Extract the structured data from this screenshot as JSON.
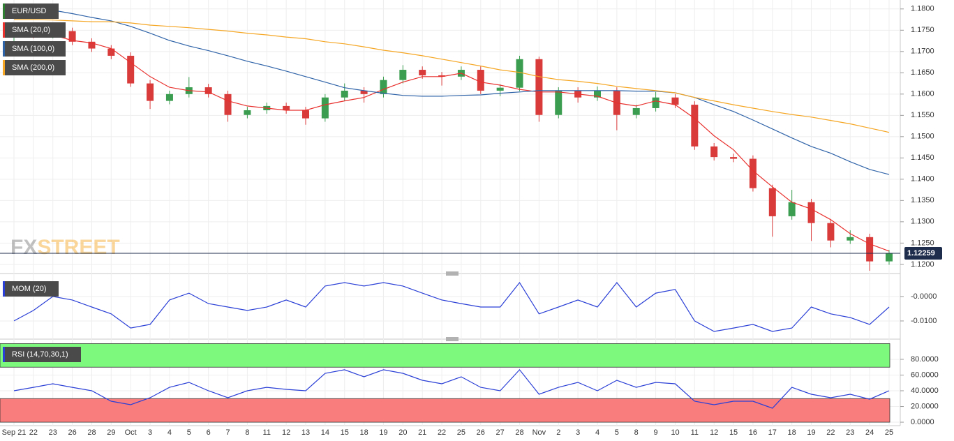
{
  "chart_data": {
    "type": "candlestick",
    "symbol": "EUR/USD",
    "categories": [
      "Sep 21",
      "22",
      "23",
      "26",
      "28",
      "29",
      "Oct",
      "3",
      "4",
      "5",
      "6",
      "7",
      "8",
      "11",
      "12",
      "13",
      "14",
      "15",
      "18",
      "19",
      "20",
      "21",
      "22",
      "25",
      "26",
      "27",
      "28",
      "Nov",
      "2",
      "3",
      "4",
      "5",
      "8",
      "9",
      "10",
      "11",
      "12",
      "15",
      "16",
      "17",
      "18",
      "19",
      "22",
      "23",
      "24",
      "25"
    ],
    "open": [
      1.174,
      1.1748,
      1.1739,
      1.1748,
      1.1723,
      1.1707,
      1.169,
      1.1625,
      1.1584,
      1.16,
      1.1616,
      1.16,
      1.1551,
      1.1562,
      1.1572,
      1.1562,
      1.1543,
      1.1592,
      1.1608,
      1.16,
      1.1633,
      1.1657,
      1.1644,
      1.1641,
      1.1657,
      1.1608,
      1.1615,
      1.1682,
      1.1551,
      1.1608,
      1.1592,
      1.1608,
      1.1551,
      1.1567,
      1.1592,
      1.1575,
      1.1477,
      1.1452,
      1.1448,
      1.1379,
      1.1313,
      1.1346,
      1.1297,
      1.1256,
      1.1264,
      1.1207
    ],
    "high": [
      1.1756,
      1.1756,
      1.1756,
      1.1756,
      1.1731,
      1.1715,
      1.1698,
      1.1633,
      1.1608,
      1.164,
      1.1624,
      1.1608,
      1.157,
      1.158,
      1.158,
      1.157,
      1.16,
      1.1625,
      1.1616,
      1.1641,
      1.1668,
      1.1665,
      1.1652,
      1.1665,
      1.1665,
      1.1623,
      1.169,
      1.1688,
      1.1616,
      1.1616,
      1.1618,
      1.1616,
      1.1575,
      1.1605,
      1.16,
      1.1583,
      1.1485,
      1.146,
      1.1456,
      1.1387,
      1.1375,
      1.1354,
      1.1305,
      1.128,
      1.1272,
      1.1234
    ],
    "low": [
      1.172,
      1.1731,
      1.1731,
      1.1715,
      1.1699,
      1.1682,
      1.1617,
      1.1565,
      1.1576,
      1.1592,
      1.1592,
      1.1535,
      1.1543,
      1.1554,
      1.1554,
      1.1528,
      1.1535,
      1.1584,
      1.158,
      1.1592,
      1.1625,
      1.1636,
      1.162,
      1.1633,
      1.16,
      1.1595,
      1.1607,
      1.1535,
      1.1543,
      1.158,
      1.1584,
      1.1515,
      1.1543,
      1.1559,
      1.1567,
      1.1469,
      1.1444,
      1.144,
      1.1371,
      1.1265,
      1.1305,
      1.1255,
      1.124,
      1.1248,
      1.1185,
      1.1199
    ],
    "close": [
      1.1748,
      1.1739,
      1.1748,
      1.1723,
      1.1707,
      1.169,
      1.1625,
      1.1584,
      1.16,
      1.1616,
      1.16,
      1.1551,
      1.1562,
      1.1572,
      1.1562,
      1.1543,
      1.1592,
      1.1608,
      1.16,
      1.1633,
      1.1657,
      1.1644,
      1.1641,
      1.1657,
      1.1608,
      1.1615,
      1.1682,
      1.1551,
      1.1608,
      1.1592,
      1.1608,
      1.1551,
      1.1567,
      1.1592,
      1.1575,
      1.1477,
      1.1452,
      1.1448,
      1.1379,
      1.1313,
      1.1346,
      1.1297,
      1.1256,
      1.1264,
      1.1207,
      1.1226
    ],
    "up_color": "#3a9d4f",
    "down_color": "#d93a3a",
    "series": [
      {
        "name": "SMA (20,0)",
        "color": "#e8302d",
        "values": [
          1.1748,
          1.1756,
          1.1739,
          1.1726,
          1.172,
          1.1707,
          1.1674,
          1.1641,
          1.1616,
          1.1608,
          1.1605,
          1.1584,
          1.1572,
          1.1567,
          1.1562,
          1.1562,
          1.1575,
          1.1584,
          1.1592,
          1.1611,
          1.1628,
          1.1641,
          1.1641,
          1.1649,
          1.1628,
          1.1621,
          1.1611,
          1.1605,
          1.1605,
          1.16,
          1.1595,
          1.1579,
          1.1572,
          1.1584,
          1.1575,
          1.1543,
          1.1502,
          1.1469,
          1.142,
          1.1382,
          1.1346,
          1.133,
          1.1305,
          1.1272,
          1.1248,
          1.1231
        ]
      },
      {
        "name": "SMA (100,0)",
        "color": "#2f63a8",
        "values": [
          1.1808,
          1.1802,
          1.1797,
          1.1789,
          1.178,
          1.1772,
          1.1759,
          1.1743,
          1.1726,
          1.1713,
          1.1702,
          1.169,
          1.1677,
          1.1666,
          1.1654,
          1.1641,
          1.1628,
          1.1615,
          1.1608,
          1.1602,
          1.1597,
          1.1595,
          1.1595,
          1.1597,
          1.1598,
          1.1602,
          1.1605,
          1.1608,
          1.1608,
          1.1608,
          1.1608,
          1.1608,
          1.1607,
          1.1607,
          1.1603,
          1.1592,
          1.1575,
          1.1559,
          1.1539,
          1.1518,
          1.1497,
          1.1477,
          1.1461,
          1.1441,
          1.1423,
          1.1411
        ]
      },
      {
        "name": "SMA (200,0)",
        "color": "#f5a623",
        "values": [
          1.1775,
          1.1775,
          1.1774,
          1.1772,
          1.177,
          1.177,
          1.1767,
          1.1762,
          1.1759,
          1.1756,
          1.1752,
          1.1748,
          1.1743,
          1.1739,
          1.1734,
          1.173,
          1.1723,
          1.1718,
          1.1711,
          1.1703,
          1.1697,
          1.169,
          1.1682,
          1.1674,
          1.1666,
          1.1657,
          1.1651,
          1.1641,
          1.1634,
          1.163,
          1.1625,
          1.1618,
          1.1613,
          1.1608,
          1.1603,
          1.1592,
          1.1584,
          1.1575,
          1.1567,
          1.1559,
          1.1552,
          1.1546,
          1.1538,
          1.153,
          1.152,
          1.151
        ]
      }
    ],
    "ylim": [
      1.1185,
      1.1821
    ],
    "yticks": [
      {
        "value": 1.18,
        "label": "1.1800"
      },
      {
        "value": 1.175,
        "label": "1.1750"
      },
      {
        "value": 1.17,
        "label": "1.1700"
      },
      {
        "value": 1.165,
        "label": "1.1650"
      },
      {
        "value": 1.16,
        "label": "1.1600"
      },
      {
        "value": 1.155,
        "label": "1.1550"
      },
      {
        "value": 1.15,
        "label": "1.1500"
      },
      {
        "value": 1.145,
        "label": "1.1450"
      },
      {
        "value": 1.14,
        "label": "1.1400"
      },
      {
        "value": 1.135,
        "label": "1.1350"
      },
      {
        "value": 1.13,
        "label": "1.1300"
      },
      {
        "value": 1.125,
        "label": "1.1250"
      },
      {
        "value": 1.12,
        "label": "1.1200"
      }
    ],
    "last_price": 1.12259,
    "watermark": [
      "FX",
      "STREET"
    ],
    "panels": [
      {
        "type": "line",
        "name": "MOM (20)",
        "color": "#2a3fd6",
        "values": [
          -0.01,
          -0.0057,
          0,
          -0.0014,
          -0.0043,
          -0.0071,
          -0.0129,
          -0.0114,
          -0.0014,
          0.0014,
          -0.0029,
          -0.0043,
          -0.0057,
          -0.0043,
          -0.0014,
          -0.0043,
          0.0043,
          0.0057,
          0.0043,
          0.0057,
          0.0043,
          0.0014,
          -0.0014,
          -0.0029,
          -0.0043,
          -0.0043,
          0.0057,
          -0.0071,
          -0.0043,
          -0.0014,
          -0.0043,
          0.0057,
          -0.0043,
          0.0014,
          0.0029,
          -0.01,
          -0.0143,
          -0.0129,
          -0.0114,
          -0.0143,
          -0.0129,
          -0.0043,
          -0.0071,
          -0.0086,
          -0.0114,
          -0.0043
        ],
        "ylim": [
          -0.0163,
          0.0077
        ],
        "yticks": [
          {
            "value": 0,
            "label": "-0.0000"
          },
          {
            "value": -0.01,
            "label": "-0.0100"
          }
        ]
      },
      {
        "type": "line",
        "name": "RSI (14,70,30,1)",
        "color": "#2a3fd6",
        "values": [
          40,
          44.4,
          48.9,
          44.4,
          40,
          26.7,
          22.2,
          31.1,
          44.4,
          50.7,
          40,
          31.1,
          40,
          44.4,
          41.8,
          40,
          62.2,
          66.7,
          57.8,
          66.7,
          62.2,
          53.3,
          48.9,
          57.8,
          44.4,
          40,
          66.7,
          35.6,
          44.4,
          50.7,
          40,
          53.3,
          44.4,
          50.7,
          48.9,
          26.7,
          22.2,
          26.7,
          26.7,
          17.8,
          44.4,
          35.6,
          31.1,
          35.6,
          29.3,
          40
        ],
        "ylim": [
          -4.4,
          100.4
        ],
        "yticks": [
          {
            "value": 80,
            "label": "80.0000"
          },
          {
            "value": 60,
            "label": "60.0000"
          },
          {
            "value": 40,
            "label": "40.0000"
          },
          {
            "value": 20,
            "label": "20.0000"
          },
          {
            "value": 0,
            "label": "0.0000"
          }
        ],
        "bands": [
          {
            "from": 70,
            "to": 100,
            "color": "#7dfa7d"
          },
          {
            "from": 0,
            "to": 30,
            "color": "#fa7d7d"
          }
        ]
      }
    ]
  }
}
